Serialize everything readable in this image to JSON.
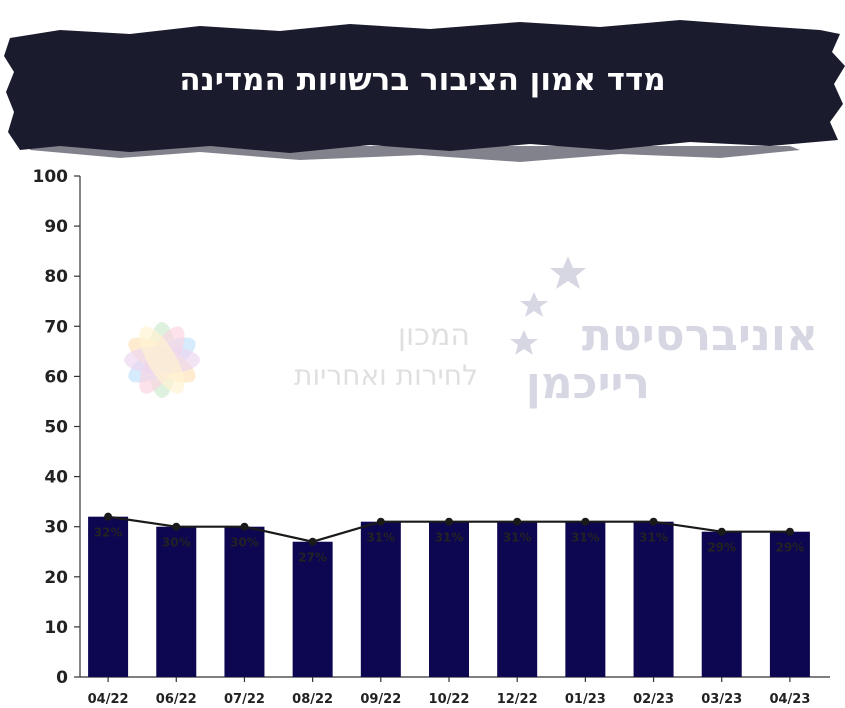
{
  "chart_data": {
    "type": "bar",
    "title": "מדד אמון הציבור ברשויות המדינה",
    "categories": [
      "04/22",
      "06/22",
      "07/22",
      "08/22",
      "09/22",
      "10/22",
      "12/22",
      "01/23",
      "02/23",
      "03/23",
      "04/23"
    ],
    "values": [
      32,
      30,
      30,
      27,
      31,
      31,
      31,
      31,
      31,
      29,
      29
    ],
    "value_labels": [
      "32%",
      "30%",
      "30%",
      "27%",
      "31%",
      "31%",
      "31%",
      "31%",
      "31%",
      "29%",
      "29%"
    ],
    "line_overlay": true,
    "ylim": [
      0,
      100
    ],
    "yticks": [
      0,
      10,
      20,
      30,
      40,
      50,
      60,
      70,
      80,
      90,
      100
    ],
    "xlabel": "",
    "ylabel": "",
    "grid": false,
    "colors": {
      "bar": "#0d0650",
      "line": "#1a1a1a",
      "banner": "#1b1b2e",
      "title_text": "#ffffff"
    }
  },
  "watermark": {
    "institute_line1": "המכון",
    "institute_line2": "לחירות ואחריות",
    "university_line1": "אוניברסיטת",
    "university_line2": "רייכמן"
  }
}
